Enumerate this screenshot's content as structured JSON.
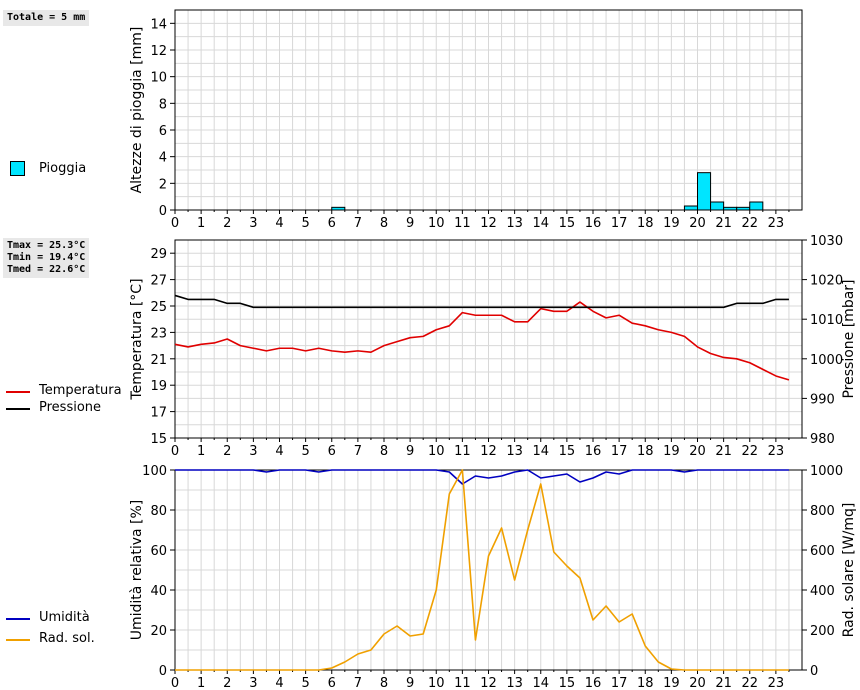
{
  "stats": {
    "rain_total": "Totale = 5 mm",
    "temp_lines": [
      "Tmax = 25.3°C",
      "Tmin = 19.4°C",
      "Tmed = 22.6°C"
    ]
  },
  "legend": {
    "rain": "Pioggia",
    "temperature": "Temperatura",
    "pressure": "Pressione",
    "humidity": "Umidità",
    "solar": "Rad. sol."
  },
  "colors": {
    "rain": "#00e5ff",
    "temperature": "#e00000",
    "pressure": "#000000",
    "humidity": "#0000c0",
    "solar": "#f0a000"
  },
  "chart_data": [
    {
      "type": "bar",
      "ylabel": "Altezze di pioggia [mm]",
      "ylim": [
        0,
        15
      ],
      "yticks": [
        0,
        2,
        4,
        6,
        8,
        10,
        12,
        14
      ],
      "xticks": [
        0,
        1,
        2,
        3,
        4,
        5,
        6,
        7,
        8,
        9,
        10,
        11,
        12,
        13,
        14,
        15,
        16,
        17,
        18,
        19,
        20,
        21,
        22,
        23
      ],
      "grid": true,
      "series": [
        {
          "name": "Pioggia",
          "x": [
            6.0,
            19.5,
            20.0,
            20.5,
            21.0,
            21.5,
            22.0
          ],
          "values": [
            0.2,
            0.3,
            2.8,
            0.6,
            0.2,
            0.2,
            0.6
          ]
        }
      ]
    },
    {
      "type": "line",
      "ylabel": "Temperatura [°C]",
      "y2label": "Pressione [mbar]",
      "ylim": [
        15,
        30
      ],
      "yticks": [
        15,
        17,
        19,
        21,
        23,
        25,
        27,
        29
      ],
      "y2lim": [
        980,
        1030
      ],
      "y2ticks": [
        980,
        990,
        1000,
        1010,
        1020,
        1030
      ],
      "xticks": [
        0,
        1,
        2,
        3,
        4,
        5,
        6,
        7,
        8,
        9,
        10,
        11,
        12,
        13,
        14,
        15,
        16,
        17,
        18,
        19,
        20,
        21,
        22,
        23
      ],
      "grid": true,
      "series": [
        {
          "name": "Temperatura",
          "x": [
            0,
            0.5,
            1,
            1.5,
            2,
            2.5,
            3,
            3.5,
            4,
            4.5,
            5,
            5.5,
            6,
            6.5,
            7,
            7.5,
            8,
            8.5,
            9,
            9.5,
            10,
            10.5,
            11,
            11.5,
            12,
            12.5,
            13,
            13.5,
            14,
            14.5,
            15,
            15.5,
            16,
            16.5,
            17,
            17.5,
            18,
            18.5,
            19,
            19.5,
            20,
            20.5,
            21,
            21.5,
            22,
            22.5,
            23,
            23.5
          ],
          "values": [
            22.1,
            21.9,
            22.1,
            22.2,
            22.5,
            22.0,
            21.8,
            21.6,
            21.8,
            21.8,
            21.6,
            21.8,
            21.6,
            21.5,
            21.6,
            21.5,
            22.0,
            22.3,
            22.6,
            22.7,
            23.2,
            23.5,
            24.5,
            24.3,
            24.3,
            24.3,
            23.8,
            23.8,
            24.8,
            24.6,
            24.6,
            25.3,
            24.6,
            24.1,
            24.3,
            23.7,
            23.5,
            23.2,
            23.0,
            22.7,
            21.9,
            21.4,
            21.1,
            21.0,
            20.7,
            20.2,
            19.7,
            19.4
          ]
        },
        {
          "name": "Pressione",
          "axis": "right",
          "x": [
            0,
            0.5,
            1,
            1.5,
            2,
            2.5,
            3,
            3.5,
            20.5,
            21,
            21.5,
            22,
            22.5,
            23,
            23.5
          ],
          "values": [
            1016,
            1015,
            1015,
            1015,
            1014,
            1014,
            1013,
            1013,
            1013,
            1013,
            1014,
            1014,
            1014,
            1015,
            1015
          ]
        }
      ]
    },
    {
      "type": "line",
      "ylabel": "Umidità relativa [%]",
      "y2label": "Rad. solare [W/mq]",
      "ylim": [
        0,
        100
      ],
      "yticks": [
        0,
        20,
        40,
        60,
        80,
        100
      ],
      "y2lim": [
        0,
        1000
      ],
      "y2ticks": [
        0,
        200,
        400,
        600,
        800,
        1000
      ],
      "xticks": [
        0,
        1,
        2,
        3,
        4,
        5,
        6,
        7,
        8,
        9,
        10,
        11,
        12,
        13,
        14,
        15,
        16,
        17,
        18,
        19,
        20,
        21,
        22,
        23
      ],
      "grid": true,
      "series": [
        {
          "name": "Umidità",
          "x": [
            0,
            3,
            3.5,
            4,
            5,
            5.5,
            6,
            10,
            10.5,
            11,
            11.5,
            12,
            12.5,
            13,
            13.5,
            14,
            14.5,
            15,
            15.5,
            16,
            16.5,
            17,
            17.5,
            18,
            19,
            19.5,
            20,
            23.5
          ],
          "values": [
            100,
            100,
            99,
            100,
            100,
            99,
            100,
            100,
            99,
            93,
            97,
            96,
            97,
            99,
            100,
            96,
            97,
            98,
            94,
            96,
            99,
            98,
            100,
            100,
            100,
            99,
            100,
            100
          ]
        },
        {
          "name": "Rad. sol.",
          "axis": "right",
          "x": [
            0,
            5.5,
            6,
            6.5,
            7,
            7.5,
            8,
            8.5,
            9,
            9.5,
            10,
            10.5,
            11,
            11.5,
            12,
            12.5,
            13,
            13.5,
            14,
            14.5,
            15,
            15.5,
            16,
            16.5,
            17,
            17.5,
            18,
            18.5,
            19,
            19.5,
            23.5
          ],
          "values": [
            0,
            0,
            10,
            40,
            80,
            100,
            180,
            220,
            170,
            180,
            400,
            880,
            1000,
            150,
            570,
            710,
            450,
            700,
            930,
            590,
            520,
            460,
            250,
            320,
            240,
            280,
            120,
            40,
            5,
            0,
            0
          ]
        }
      ]
    }
  ]
}
